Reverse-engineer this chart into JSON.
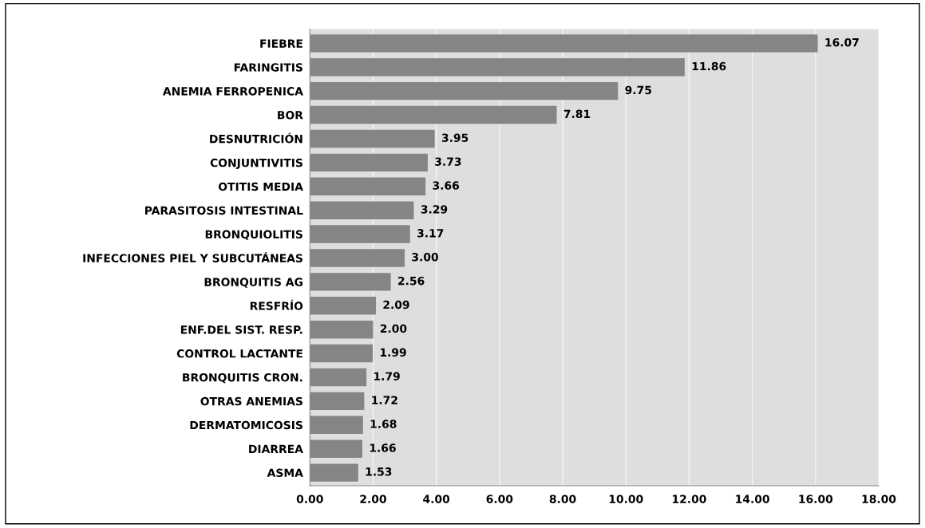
{
  "chart_data": {
    "type": "bar",
    "orientation": "horizontal",
    "categories": [
      "FIEBRE",
      "FARINGITIS",
      "ANEMIA FERROPENICA",
      "BOR",
      "DESNUTRICIÓN",
      "CONJUNTIVITIS",
      "OTITIS MEDIA",
      "PARASITOSIS INTESTINAL",
      "BRONQUIOLITIS",
      "INFECCIONES PIEL Y SUBCUTÁNEAS",
      "BRONQUITIS AG",
      "RESFRÍO",
      "ENF.DEL SIST. RESP.",
      "CONTROL LACTANTE",
      "BRONQUITIS CRON.",
      "OTRAS ANEMIAS",
      "DERMATOMICOSIS",
      "DIARREA",
      "ASMA"
    ],
    "values": [
      16.07,
      11.86,
      9.75,
      7.81,
      3.95,
      3.73,
      3.66,
      3.29,
      3.17,
      3.0,
      2.56,
      2.09,
      2.0,
      1.99,
      1.79,
      1.72,
      1.68,
      1.66,
      1.53
    ],
    "value_labels": [
      "16.07",
      "11.86",
      "9.75",
      "7.81",
      "3.95",
      "3.73",
      "3.66",
      "3.29",
      "3.17",
      "3.00",
      "2.56",
      "2.09",
      "2.00",
      "1.99",
      "1.79",
      "1.72",
      "1.68",
      "1.66",
      "1.53"
    ],
    "color": "#858585",
    "xlim": [
      0,
      18
    ],
    "xticks": [
      {
        "value": 0,
        "label": "0.00"
      },
      {
        "value": 2,
        "label": "2.00"
      },
      {
        "value": 4,
        "label": "4.00"
      },
      {
        "value": 6,
        "label": "6.00"
      },
      {
        "value": 8,
        "label": "8.00"
      },
      {
        "value": 10,
        "label": "10.00"
      },
      {
        "value": 12,
        "label": "12.00"
      },
      {
        "value": 14,
        "label": "14.00"
      },
      {
        "value": 16,
        "label": "16.00"
      },
      {
        "value": 18,
        "label": "18.00"
      }
    ],
    "grid": "x",
    "legend": false
  }
}
